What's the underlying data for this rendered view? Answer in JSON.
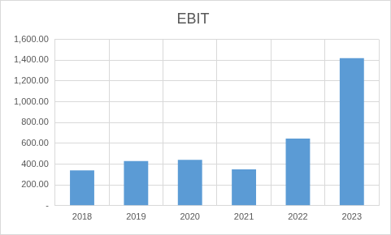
{
  "chart_data": {
    "type": "bar",
    "title": "EBIT",
    "categories": [
      "2018",
      "2019",
      "2020",
      "2021",
      "2022",
      "2023"
    ],
    "values": [
      340,
      430,
      440,
      350,
      645,
      1420
    ],
    "color": "#5b9bd5",
    "ylim": [
      0,
      1600
    ],
    "yticks": [
      {
        "value": 0,
        "label": "-"
      },
      {
        "value": 200,
        "label": "200.00"
      },
      {
        "value": 400,
        "label": "400.00"
      },
      {
        "value": 600,
        "label": "600.00"
      },
      {
        "value": 800,
        "label": "800.00"
      },
      {
        "value": 1000,
        "label": "1,000.00"
      },
      {
        "value": 1200,
        "label": "1,200.00"
      },
      {
        "value": 1400,
        "label": "1,400.00"
      },
      {
        "value": 1600,
        "label": "1,600.00"
      }
    ],
    "grid": true
  }
}
